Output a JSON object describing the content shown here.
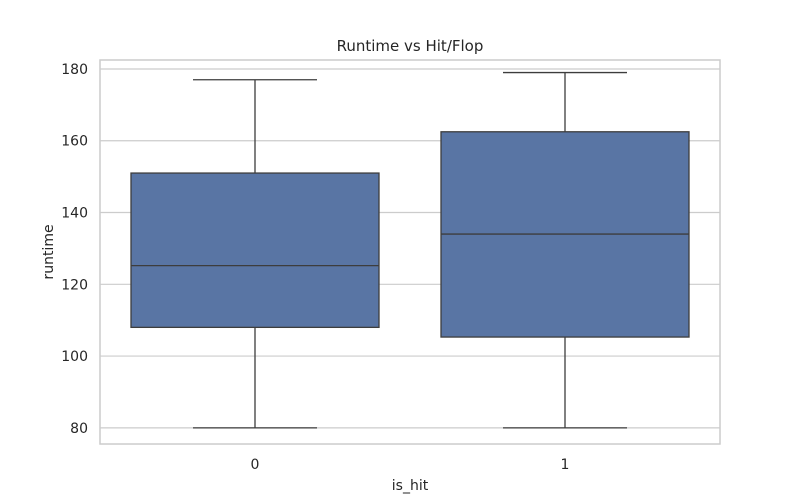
{
  "chart_data": {
    "type": "box",
    "title": "Runtime vs Hit/Flop",
    "xlabel": "is_hit",
    "ylabel": "runtime",
    "categories": [
      "0",
      "1"
    ],
    "ylim": [
      75.5,
      182.5
    ],
    "yticks": [
      80,
      100,
      120,
      140,
      160,
      180
    ],
    "grid": true,
    "box_color": "#5975a4",
    "line_color": "#3d3d3d",
    "boxes": [
      {
        "category": "0",
        "whisker_low": 80,
        "q1": 108,
        "median": 125.2,
        "q3": 151,
        "whisker_high": 177
      },
      {
        "category": "1",
        "whisker_low": 80,
        "q1": 105.3,
        "median": 134,
        "q3": 162.5,
        "whisker_high": 179
      }
    ]
  }
}
